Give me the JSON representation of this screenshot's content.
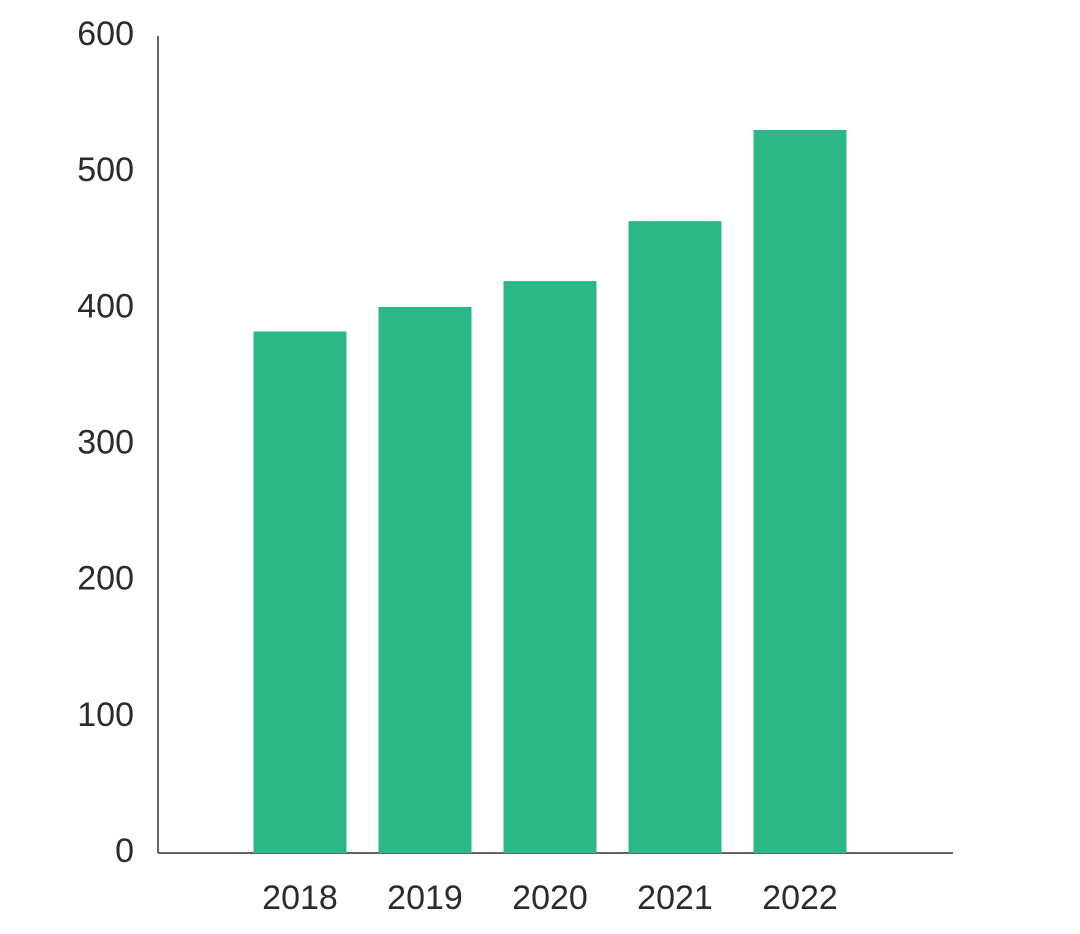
{
  "chart_data": {
    "type": "bar",
    "categories": [
      "2018",
      "2019",
      "2020",
      "2021",
      "2022"
    ],
    "values": [
      383,
      401,
      420,
      464,
      531
    ],
    "color": "#2bb886",
    "ylim": [
      0,
      600
    ],
    "yticks": [
      0,
      100,
      200,
      300,
      400,
      500,
      600
    ],
    "grid": false
  }
}
